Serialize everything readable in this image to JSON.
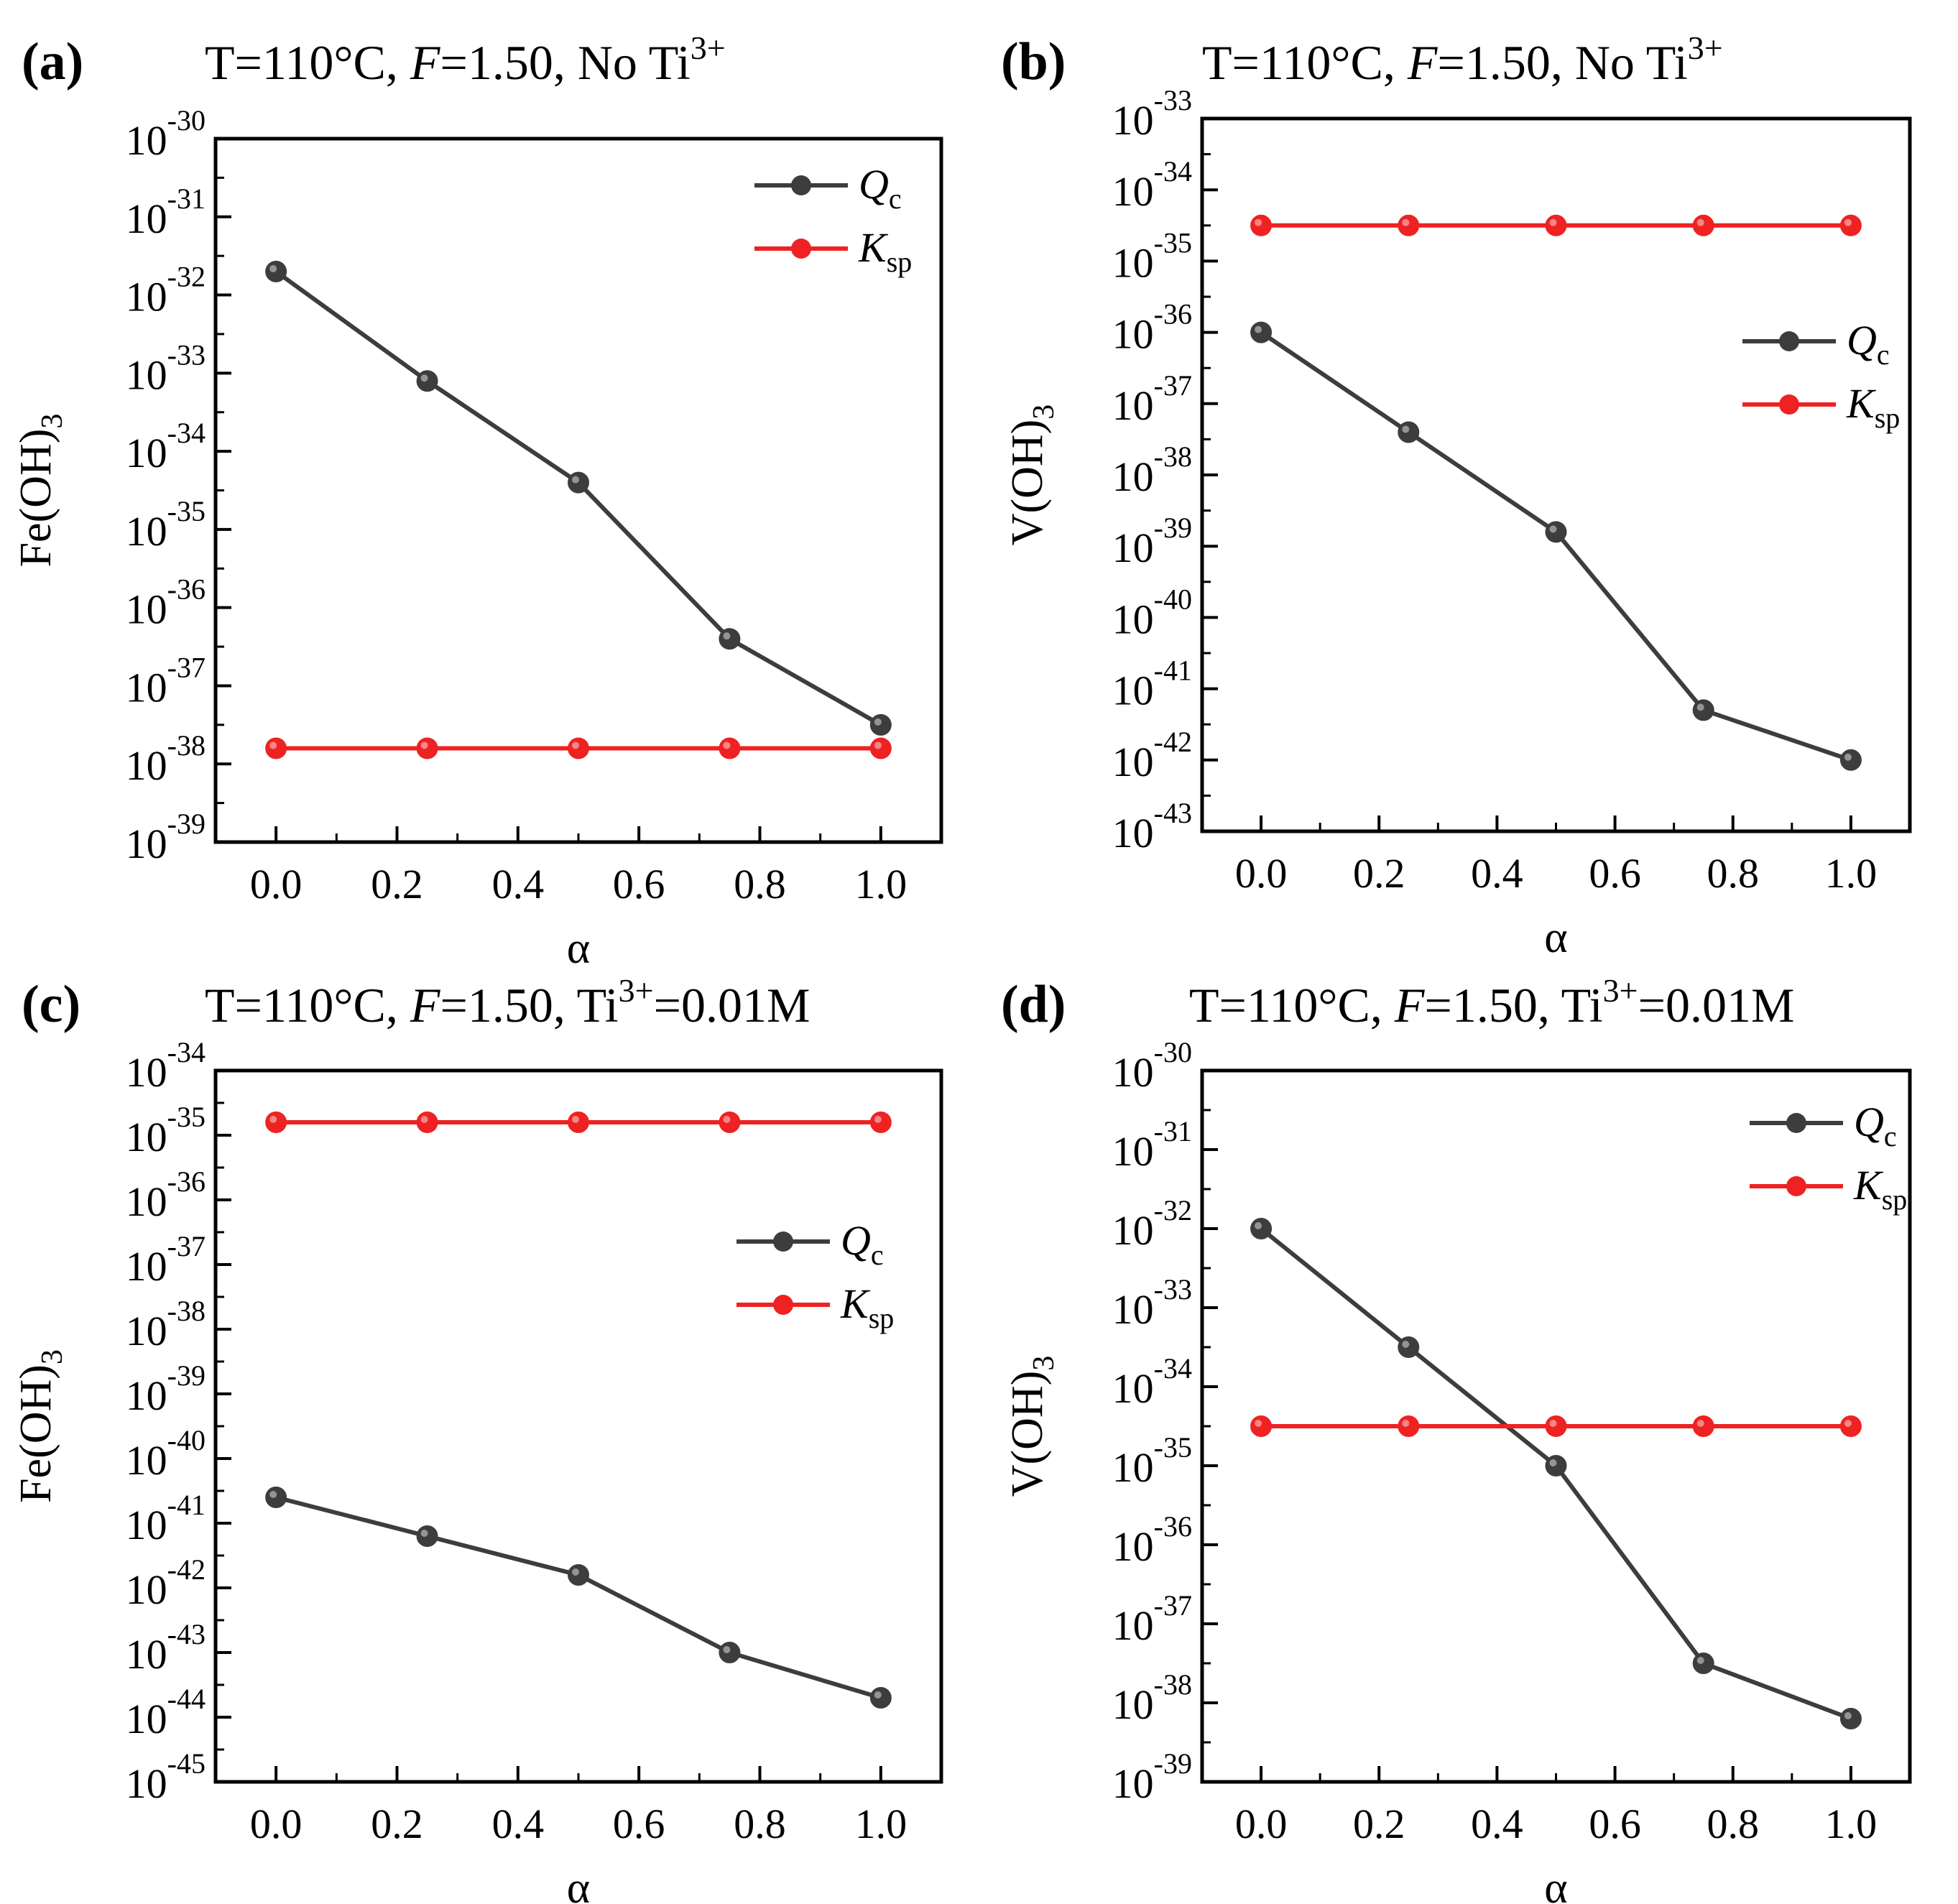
{
  "colors": {
    "qc": "#3d3d3d",
    "ksp": "#ee2222",
    "axis": "#000000"
  },
  "chart_data": [
    {
      "type": "line",
      "panel_label": "(a)",
      "title": {
        "prefix": "T=110°C, ",
        "f_var": "F",
        "f_val": "=1.50, ",
        "ti_text": "No Ti",
        "ti_sup": "3+",
        "ti_tail": ""
      },
      "xlabel": "α",
      "ylabel": "Fe(OH)",
      "ylabel_sub": "3",
      "y_scale": "log",
      "ylim_exp": [
        -39,
        -30
      ],
      "xlim": [
        -0.1,
        1.1
      ],
      "x_ticks": [
        "0.0",
        "0.2",
        "0.4",
        "0.6",
        "0.8",
        "1.0"
      ],
      "legend_position": "top-right",
      "x": [
        0.0,
        0.25,
        0.5,
        0.75,
        1.0
      ],
      "series": [
        {
          "name": "Qc",
          "legend_main": "Q",
          "legend_sub": "c",
          "values_exp": [
            -31.7,
            -33.1,
            -34.4,
            -36.4,
            -37.5
          ]
        },
        {
          "name": "Ksp",
          "legend_main": "K",
          "legend_sub": "sp",
          "values_exp": [
            -37.8,
            -37.8,
            -37.8,
            -37.8,
            -37.8
          ]
        }
      ]
    },
    {
      "type": "line",
      "panel_label": "(b)",
      "title": {
        "prefix": "T=110°C, ",
        "f_var": "F",
        "f_val": "=1.50, ",
        "ti_text": "No Ti",
        "ti_sup": "3+",
        "ti_tail": ""
      },
      "xlabel": "α",
      "ylabel": "V(OH)",
      "ylabel_sub": "3",
      "y_scale": "log",
      "ylim_exp": [
        -43,
        -33
      ],
      "xlim": [
        -0.1,
        1.1
      ],
      "x_ticks": [
        "0.0",
        "0.2",
        "0.4",
        "0.6",
        "0.8",
        "1.0"
      ],
      "legend_position": "upper-right",
      "x": [
        0.0,
        0.25,
        0.5,
        0.75,
        1.0
      ],
      "series": [
        {
          "name": "Qc",
          "legend_main": "Q",
          "legend_sub": "c",
          "values_exp": [
            -36.0,
            -37.4,
            -38.8,
            -41.3,
            -42.0
          ]
        },
        {
          "name": "Ksp",
          "legend_main": "K",
          "legend_sub": "sp",
          "values_exp": [
            -34.5,
            -34.5,
            -34.5,
            -34.5,
            -34.5
          ]
        }
      ]
    },
    {
      "type": "line",
      "panel_label": "(c)",
      "title": {
        "prefix": "T=110°C, ",
        "f_var": "F",
        "f_val": "=1.50, ",
        "ti_text": "Ti",
        "ti_sup": "3+",
        "ti_tail": "=0.01M"
      },
      "xlabel": "α",
      "ylabel": "Fe(OH)",
      "ylabel_sub": "3",
      "y_scale": "log",
      "ylim_exp": [
        -45,
        -34
      ],
      "xlim": [
        -0.1,
        1.1
      ],
      "x_ticks": [
        "0.0",
        "0.2",
        "0.4",
        "0.6",
        "0.8",
        "1.0"
      ],
      "legend_position": "upper-right",
      "x": [
        0.0,
        0.25,
        0.5,
        0.75,
        1.0
      ],
      "series": [
        {
          "name": "Qc",
          "legend_main": "Q",
          "legend_sub": "c",
          "values_exp": [
            -40.6,
            -41.2,
            -41.8,
            -43.0,
            -43.7
          ]
        },
        {
          "name": "Ksp",
          "legend_main": "K",
          "legend_sub": "sp",
          "values_exp": [
            -34.8,
            -34.8,
            -34.8,
            -34.8,
            -34.8
          ]
        }
      ]
    },
    {
      "type": "line",
      "panel_label": "(d)",
      "title": {
        "prefix": "T=110°C, ",
        "f_var": "F",
        "f_val": "=1.50, ",
        "ti_text": "Ti",
        "ti_sup": "3+",
        "ti_tail": "=0.01M"
      },
      "xlabel": "α",
      "ylabel": "V(OH)",
      "ylabel_sub": "3",
      "y_scale": "log",
      "ylim_exp": [
        -39,
        -30
      ],
      "xlim": [
        -0.1,
        1.1
      ],
      "x_ticks": [
        "0.0",
        "0.2",
        "0.4",
        "0.6",
        "0.8",
        "1.0"
      ],
      "legend_position": "top-right",
      "x": [
        0.0,
        0.25,
        0.5,
        0.75,
        1.0
      ],
      "series": [
        {
          "name": "Qc",
          "legend_main": "Q",
          "legend_sub": "c",
          "values_exp": [
            -32.0,
            -33.5,
            -35.0,
            -37.5,
            -38.2
          ]
        },
        {
          "name": "Ksp",
          "legend_main": "K",
          "legend_sub": "sp",
          "values_exp": [
            -34.5,
            -34.5,
            -34.5,
            -34.5,
            -34.5
          ]
        }
      ]
    }
  ]
}
